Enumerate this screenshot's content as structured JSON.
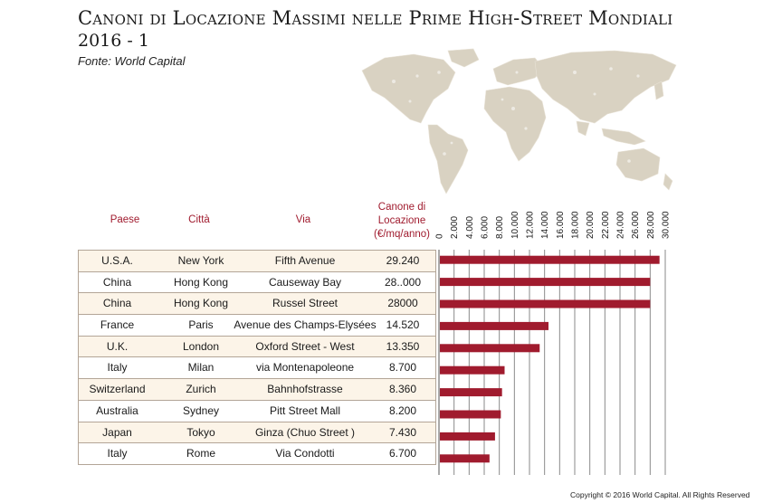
{
  "header": {
    "title": "Canoni di Locazione Massimi nelle Prime High-Street Mondiali",
    "subtitle": "2016 - 1",
    "source": "Fonte: World Capital"
  },
  "columns": {
    "country": "Paese",
    "city": "Città",
    "street": "Via",
    "rent_line1": "Canone di",
    "rent_line2": "Locazione",
    "rent_line3": "(€/mq/anno)"
  },
  "rows": [
    {
      "country": "U.S.A.",
      "city": "New York",
      "street": "Fifth Avenue",
      "rent": "29.240"
    },
    {
      "country": "China",
      "city": "Hong Kong",
      "street": "Causeway Bay",
      "rent": "28..000"
    },
    {
      "country": "China",
      "city": "Hong Kong",
      "street": "Russel Street",
      "rent": "28000"
    },
    {
      "country": "France",
      "city": "Paris",
      "street": "Avenue des Champs-Elysées",
      "rent": "14.520"
    },
    {
      "country": "U.K.",
      "city": "London",
      "street": "Oxford Street - West",
      "rent": "13.350"
    },
    {
      "country": "Italy",
      "city": "Milan",
      "street": "via Montenapoleone",
      "rent": "8.700"
    },
    {
      "country": "Switzerland",
      "city": "Zurich",
      "street": "Bahnhofstrasse",
      "rent": "8.360"
    },
    {
      "country": "Australia",
      "city": "Sydney",
      "street": "Pitt Street Mall",
      "rent": "8.200"
    },
    {
      "country": "Japan",
      "city": "Tokyo",
      "street": "Ginza (Chuo Street )",
      "rent": "7.430"
    },
    {
      "country": "Italy",
      "city": "Rome",
      "street": "Via Condotti",
      "rent": "6.700"
    }
  ],
  "chart_data": {
    "type": "bar",
    "orientation": "horizontal",
    "categories": [
      "Fifth Avenue",
      "Causeway Bay",
      "Russel Street",
      "Avenue des Champs-Elysées",
      "Oxford Street - West",
      "via Montenapoleone",
      "Bahnhofstrasse",
      "Pitt Street Mall",
      "Ginza (Chuo Street )",
      "Via Condotti"
    ],
    "values": [
      29240,
      28000,
      28000,
      14520,
      13350,
      8700,
      8360,
      8200,
      7430,
      6700
    ],
    "xlim": [
      0,
      30000
    ],
    "xticks": [
      "0",
      "2.000",
      "4.000",
      "6.000",
      "8.000",
      "10.000",
      "12.000",
      "14.000",
      "16.000",
      "18.000",
      "20.000",
      "22.000",
      "24.000",
      "26.000",
      "28.000",
      "30.000"
    ],
    "grid": true,
    "bar_color": "#a01b2e"
  },
  "footer": {
    "copyright": "Copyright © 2016",
    "rights": "World Capital. All Rights Reserved"
  },
  "colors": {
    "accent": "#a01b2e",
    "row_alt": "#fcf4e8",
    "map": "#d9d2c2"
  }
}
